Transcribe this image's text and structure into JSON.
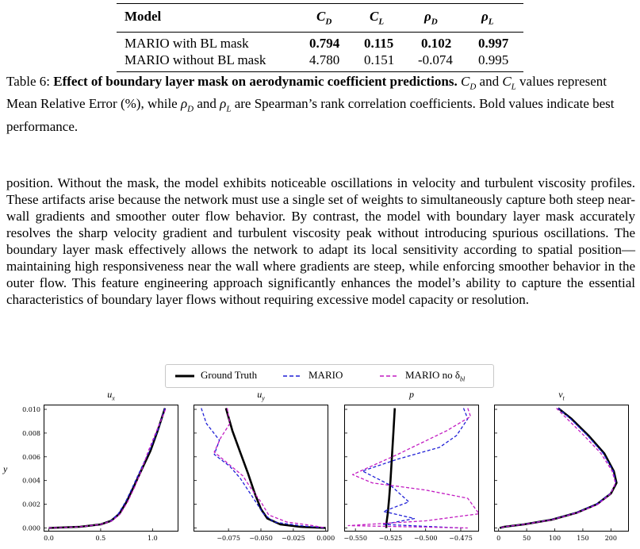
{
  "table": {
    "headers": [
      "Model",
      "C_D",
      "C_L",
      "ρ_D",
      "ρ_L"
    ],
    "rows": [
      {
        "model": "MARIO with BL mask",
        "cd": "0.794",
        "cl": "0.115",
        "rhod": "0.102",
        "rhol": "0.997",
        "bold": true
      },
      {
        "model": "MARIO without BL mask",
        "cd": "4.780",
        "cl": "0.151",
        "rhod": "-0.074",
        "rhol": "0.995",
        "bold": false
      }
    ]
  },
  "caption": {
    "label": "Table 6:",
    "title": "Effect of boundary layer mask on aerodynamic coefficient predictions.",
    "text_1": "C",
    "sub_d": "D",
    "text_and": "and",
    "text_2": "values represent Mean Relative Error (%), while",
    "text_3": "are Spearman’s rank correlation coefficients. Bold values indicate best performance."
  },
  "body_text": "position. Without the mask, the model exhibits noticeable oscillations in velocity and turbulent viscosity profiles. These artifacts arise because the network must use a single set of weights to simultaneously capture both steep near-wall gradients and smoother outer flow behavior. By contrast, the model with boundary layer mask accurately resolves the sharp velocity gradient and turbulent viscosity peak without introducing spurious oscillations. The boundary layer mask effectively allows the network to adapt its local sensitivity according to spatial position—maintaining high responsiveness near the wall where gradients are steep, while enforcing smoother behavior in the outer flow. This feature engineering approach significantly enhances the model’s ability to capture the essential characteristics of boundary layer flows without requiring excessive model capacity or resolution.",
  "legend": {
    "gt": "Ground Truth",
    "mario": "MARIO",
    "mario_no": "MARIO no δ",
    "sub_bl": "bl"
  },
  "colors": {
    "gt": "#000000",
    "mario": "#1f1fd6",
    "mario_no": "#c21cc2"
  },
  "chart_data": [
    {
      "type": "line",
      "title": "u_x",
      "ylabel": "y",
      "xlim": [
        -0.05,
        1.25
      ],
      "ylim": [
        -0.0003,
        0.0104
      ],
      "xticks": [
        "0.0",
        "0.5",
        "1.0"
      ],
      "xtick_values": [
        0.0,
        0.5,
        1.0
      ],
      "yticks": [
        "0.000",
        "0.002",
        "0.004",
        "0.006",
        "0.008",
        "0.010"
      ],
      "ytick_values": [
        0.0,
        0.002,
        0.004,
        0.006,
        0.008,
        0.01
      ],
      "series": [
        {
          "name": "Ground Truth",
          "x": [
            0.0,
            0.3,
            0.5,
            0.6,
            0.68,
            0.75,
            0.82,
            0.9,
            0.98,
            1.05,
            1.12
          ],
          "y": [
            0.0,
            0.0001,
            0.0003,
            0.0006,
            0.0012,
            0.0022,
            0.0035,
            0.005,
            0.0065,
            0.0082,
            0.0101
          ]
        },
        {
          "name": "MARIO",
          "x": [
            0.0,
            0.3,
            0.5,
            0.6,
            0.67,
            0.74,
            0.81,
            0.89,
            0.97,
            1.05,
            1.12
          ],
          "y": [
            0.0,
            0.0001,
            0.0003,
            0.0006,
            0.0012,
            0.0022,
            0.0035,
            0.005,
            0.0065,
            0.0082,
            0.0101
          ]
        },
        {
          "name": "MARIO no δ_bl",
          "x": [
            0.0,
            0.3,
            0.5,
            0.61,
            0.69,
            0.76,
            0.83,
            0.9,
            0.96,
            1.04,
            1.13
          ],
          "y": [
            0.0,
            0.0001,
            0.0003,
            0.0006,
            0.0012,
            0.0022,
            0.0035,
            0.005,
            0.0065,
            0.0082,
            0.0101
          ]
        }
      ]
    },
    {
      "type": "line",
      "title": "u_y",
      "xlim": [
        -0.102,
        0.002
      ],
      "ylim": [
        -0.0003,
        0.0104
      ],
      "xticks": [
        "−0.075",
        "−0.050",
        "−0.025",
        "0.000"
      ],
      "xtick_values": [
        -0.075,
        -0.05,
        -0.025,
        0.0
      ],
      "series": [
        {
          "name": "Ground Truth",
          "x": [
            -0.077,
            -0.072,
            -0.066,
            -0.06,
            -0.055,
            -0.05,
            -0.045,
            -0.035,
            -0.02,
            0.0
          ],
          "y": [
            0.0101,
            0.0082,
            0.0064,
            0.0046,
            0.003,
            0.0016,
            0.0008,
            0.0003,
            0.0001,
            0.0
          ]
        },
        {
          "name": "MARIO",
          "x": [
            -0.096,
            -0.092,
            -0.082,
            -0.086,
            -0.074,
            -0.066,
            -0.06,
            -0.054,
            -0.048,
            -0.04,
            -0.02,
            0.0
          ],
          "y": [
            0.0101,
            0.0088,
            0.0074,
            0.0062,
            0.0052,
            0.0042,
            0.0032,
            0.0022,
            0.0012,
            0.0005,
            0.0002,
            0.0
          ]
        },
        {
          "name": "MARIO no δ_bl",
          "x": [
            -0.076,
            -0.074,
            -0.081,
            -0.086,
            -0.075,
            -0.064,
            -0.058,
            -0.05,
            -0.044,
            -0.03,
            -0.01,
            0.0
          ],
          "y": [
            0.0101,
            0.0088,
            0.0076,
            0.0064,
            0.0054,
            0.0044,
            0.0034,
            0.0022,
            0.0011,
            0.0005,
            0.0002,
            0.0
          ]
        }
      ]
    },
    {
      "type": "line",
      "title": "p",
      "xlim": [
        -0.558,
        -0.462
      ],
      "ylim": [
        -0.0003,
        0.0104
      ],
      "xticks": [
        "−0.550",
        "−0.525",
        "−0.500",
        "−0.475"
      ],
      "xtick_values": [
        -0.55,
        -0.525,
        -0.5,
        -0.475
      ],
      "series": [
        {
          "name": "Ground Truth",
          "x": [
            -0.522,
            -0.523,
            -0.524,
            -0.525,
            -0.526,
            -0.527,
            -0.528,
            -0.528
          ],
          "y": [
            0.0101,
            0.008,
            0.006,
            0.004,
            0.0025,
            0.0012,
            0.0003,
            0.0
          ]
        },
        {
          "name": "MARIO",
          "x": [
            -0.473,
            -0.47,
            -0.478,
            -0.49,
            -0.52,
            -0.545,
            -0.525,
            -0.512,
            -0.53,
            -0.508,
            -0.53,
            -0.475
          ],
          "y": [
            0.0101,
            0.0092,
            0.0078,
            0.0068,
            0.0058,
            0.0048,
            0.0036,
            0.0022,
            0.0014,
            0.0008,
            0.0003,
            0.0
          ]
        },
        {
          "name": "MARIO no δ_bl",
          "x": [
            -0.47,
            -0.468,
            -0.485,
            -0.52,
            -0.552,
            -0.538,
            -0.5,
            -0.47,
            -0.462,
            -0.5,
            -0.555,
            -0.47
          ],
          "y": [
            0.0101,
            0.0094,
            0.0082,
            0.0062,
            0.0045,
            0.0038,
            0.0032,
            0.0025,
            0.0012,
            0.0006,
            0.0002,
            0.0
          ]
        }
      ]
    },
    {
      "type": "line",
      "title": "ν_t",
      "xlim": [
        -8,
        232
      ],
      "ylim": [
        -0.0003,
        0.0104
      ],
      "xticks": [
        "0",
        "50",
        "100",
        "150",
        "200"
      ],
      "xtick_values": [
        0,
        50,
        100,
        150,
        200
      ],
      "series": [
        {
          "name": "Ground Truth",
          "x": [
            106,
            130,
            160,
            188,
            205,
            210,
            200,
            175,
            140,
            95,
            45,
            10,
            2
          ],
          "y": [
            0.0101,
            0.0092,
            0.0078,
            0.0063,
            0.0048,
            0.0038,
            0.0029,
            0.002,
            0.0013,
            0.0007,
            0.0003,
            0.0001,
            0.0
          ]
        },
        {
          "name": "MARIO",
          "x": [
            106,
            128,
            158,
            186,
            204,
            209,
            199,
            174,
            139,
            94,
            44,
            10,
            2
          ],
          "y": [
            0.0101,
            0.0092,
            0.0078,
            0.0063,
            0.0048,
            0.0038,
            0.0029,
            0.002,
            0.0013,
            0.0007,
            0.0003,
            0.0001,
            0.0
          ]
        },
        {
          "name": "MARIO no δ_bl",
          "x": [
            103,
            122,
            152,
            182,
            202,
            208,
            200,
            177,
            141,
            96,
            45,
            10,
            2
          ],
          "y": [
            0.0101,
            0.0092,
            0.0078,
            0.0063,
            0.0048,
            0.0038,
            0.0029,
            0.002,
            0.0013,
            0.0007,
            0.0003,
            0.0001,
            0.0
          ]
        }
      ]
    }
  ]
}
